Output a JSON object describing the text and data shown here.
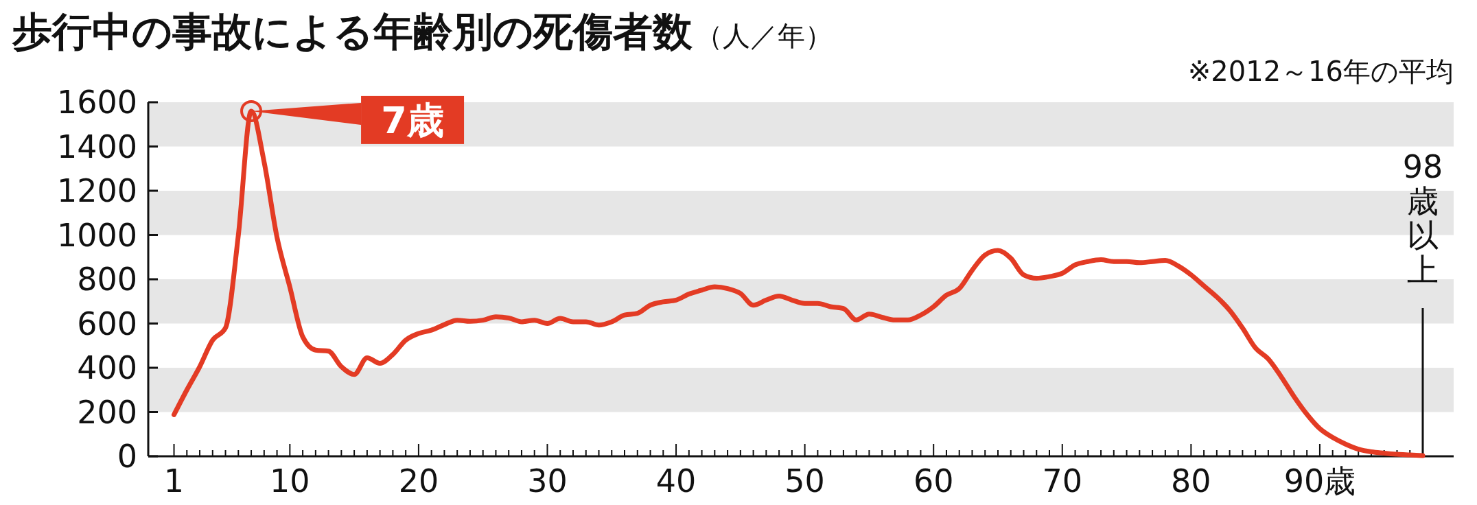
{
  "chart_data": {
    "type": "line",
    "title": "歩行中の事故による年齢別の死傷者数",
    "ylabel": "（人／年）",
    "x": [
      1,
      2,
      3,
      4,
      5,
      6,
      7,
      8,
      9,
      10,
      11,
      12,
      13,
      14,
      15,
      16,
      17,
      18,
      19,
      20,
      21,
      22,
      23,
      24,
      25,
      26,
      27,
      28,
      29,
      30,
      31,
      32,
      33,
      34,
      35,
      36,
      37,
      38,
      39,
      40,
      41,
      42,
      43,
      44,
      45,
      46,
      47,
      48,
      49,
      50,
      51,
      52,
      53,
      54,
      55,
      56,
      57,
      58,
      59,
      60,
      61,
      62,
      63,
      64,
      65,
      66,
      67,
      68,
      69,
      70,
      71,
      72,
      73,
      74,
      75,
      76,
      77,
      78,
      79,
      80,
      81,
      82,
      83,
      84,
      85,
      86,
      87,
      88,
      89,
      90,
      91,
      92,
      93,
      94,
      95,
      96,
      97,
      98
    ],
    "series": [
      {
        "color": "#e33b24",
        "values": [
          188,
          300,
          405,
          525,
          580,
          1000,
          1560,
          1330,
          990,
          765,
          540,
          480,
          475,
          405,
          370,
          445,
          420,
          460,
          525,
          555,
          570,
          595,
          615,
          610,
          615,
          630,
          625,
          608,
          615,
          600,
          623,
          608,
          608,
          593,
          608,
          638,
          646,
          683,
          698,
          706,
          733,
          751,
          766,
          758,
          736,
          683,
          706,
          724,
          706,
          691,
          691,
          676,
          668,
          616,
          643,
          628,
          616,
          616,
          638,
          676,
          728,
          758,
          841,
          910,
          930,
          895,
          820,
          805,
          812,
          827,
          865,
          880,
          888,
          880,
          880,
          875,
          880,
          885,
          860,
          820,
          770,
          720,
          660,
          580,
          490,
          440,
          360,
          270,
          190,
          125,
          85,
          55,
          32,
          20,
          14,
          9,
          6,
          3
        ]
      }
    ],
    "xlim": [
      -1,
      100.4
    ],
    "xticks": [
      1,
      {
        "value": 2,
        "label": null
      },
      {
        "value": 3,
        "label": null
      },
      {
        "value": 4,
        "label": null
      },
      {
        "value": 5,
        "label": null
      },
      {
        "value": 6,
        "label": null
      },
      {
        "value": 7,
        "label": null
      },
      {
        "value": 8,
        "label": null
      },
      {
        "value": 9,
        "label": null
      },
      10,
      {
        "value": 11,
        "label": null
      },
      {
        "value": 12,
        "label": null
      },
      {
        "value": 13,
        "label": null
      },
      {
        "value": 14,
        "label": null
      },
      {
        "value": 15,
        "label": null
      },
      {
        "value": 16,
        "label": null
      },
      {
        "value": 17,
        "label": null
      },
      {
        "value": 18,
        "label": null
      },
      {
        "value": 19,
        "label": null
      },
      20,
      {
        "value": 21,
        "label": null
      },
      {
        "value": 22,
        "label": null
      },
      {
        "value": 23,
        "label": null
      },
      {
        "value": 24,
        "label": null
      },
      {
        "value": 25,
        "label": null
      },
      {
        "value": 26,
        "label": null
      },
      {
        "value": 27,
        "label": null
      },
      {
        "value": 28,
        "label": null
      },
      {
        "value": 29,
        "label": null
      },
      30,
      {
        "value": 31,
        "label": null
      },
      {
        "value": 32,
        "label": null
      },
      {
        "value": 33,
        "label": null
      },
      {
        "value": 34,
        "label": null
      },
      {
        "value": 35,
        "label": null
      },
      {
        "value": 36,
        "label": null
      },
      {
        "value": 37,
        "label": null
      },
      {
        "value": 38,
        "label": null
      },
      {
        "value": 39,
        "label": null
      },
      40,
      {
        "value": 41,
        "label": null
      },
      {
        "value": 42,
        "label": null
      },
      {
        "value": 43,
        "label": null
      },
      {
        "value": 44,
        "label": null
      },
      {
        "value": 45,
        "label": null
      },
      {
        "value": 46,
        "label": null
      },
      {
        "value": 47,
        "label": null
      },
      {
        "value": 48,
        "label": null
      },
      {
        "value": 49,
        "label": null
      },
      50,
      {
        "value": 51,
        "label": null
      },
      {
        "value": 52,
        "label": null
      },
      {
        "value": 53,
        "label": null
      },
      {
        "value": 54,
        "label": null
      },
      {
        "value": 55,
        "label": null
      },
      {
        "value": 56,
        "label": null
      },
      {
        "value": 57,
        "label": null
      },
      {
        "value": 58,
        "label": null
      },
      {
        "value": 59,
        "label": null
      },
      60,
      {
        "value": 61,
        "label": null
      },
      {
        "value": 62,
        "label": null
      },
      {
        "value": 63,
        "label": null
      },
      {
        "value": 64,
        "label": null
      },
      {
        "value": 65,
        "label": null
      },
      {
        "value": 66,
        "label": null
      },
      {
        "value": 67,
        "label": null
      },
      {
        "value": 68,
        "label": null
      },
      {
        "value": 69,
        "label": null
      },
      70,
      {
        "value": 71,
        "label": null
      },
      {
        "value": 72,
        "label": null
      },
      {
        "value": 73,
        "label": null
      },
      {
        "value": 74,
        "label": null
      },
      {
        "value": 75,
        "label": null
      },
      {
        "value": 76,
        "label": null
      },
      {
        "value": 77,
        "label": null
      },
      {
        "value": 78,
        "label": null
      },
      {
        "value": 79,
        "label": null
      },
      80,
      {
        "value": 81,
        "label": null
      },
      {
        "value": 82,
        "label": null
      },
      {
        "value": 83,
        "label": null
      },
      {
        "value": 84,
        "label": null
      },
      {
        "value": 85,
        "label": null
      },
      {
        "value": 86,
        "label": null
      },
      {
        "value": 87,
        "label": null
      },
      {
        "value": 88,
        "label": null
      },
      {
        "value": 89,
        "label": null
      },
      {
        "value": 90,
        "label": "90歳"
      },
      {
        "value": 91,
        "label": null
      },
      {
        "value": 92,
        "label": null
      },
      {
        "value": 93,
        "label": null
      },
      {
        "value": 94,
        "label": null
      },
      {
        "value": 95,
        "label": null
      },
      {
        "value": 96,
        "label": null
      },
      {
        "value": 97,
        "label": null
      }
    ],
    "ylim": [
      0,
      1600
    ],
    "yticks": [
      0,
      200,
      400,
      600,
      800,
      1000,
      1200,
      1400,
      1600
    ],
    "bands": [
      {
        "axis": "y",
        "from": 200,
        "to": 400,
        "color": "#e6e6e6"
      },
      {
        "axis": "y",
        "from": 600,
        "to": 800,
        "color": "#e6e6e6"
      },
      {
        "axis": "y",
        "from": 1000,
        "to": 1200,
        "color": "#e6e6e6"
      },
      {
        "axis": "y",
        "from": 1400,
        "to": 1600,
        "color": "#e6e6e6"
      }
    ],
    "annotations": [
      {
        "text": "7歳",
        "x": 7,
        "y": 1560
      },
      {
        "text": "98歳以上",
        "x": 98,
        "y": 3
      },
      "※2012～16年の平均"
    ]
  }
}
